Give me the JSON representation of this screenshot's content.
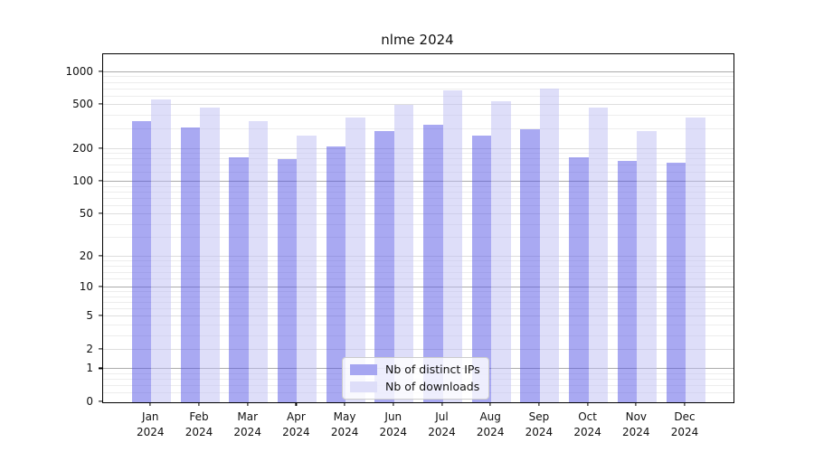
{
  "chart_data": {
    "type": "bar",
    "title": "nlme 2024",
    "x_year": "2024",
    "categories": [
      "Jan",
      "Feb",
      "Mar",
      "Apr",
      "May",
      "Jun",
      "Jul",
      "Aug",
      "Sep",
      "Oct",
      "Nov",
      "Dec"
    ],
    "series": [
      {
        "name": "Nb of distinct IPs",
        "color": "rgba(83,83,229,0.5)",
        "swatch_color": "#a6a6f1",
        "values": [
          358,
          312,
          168,
          160,
          209,
          288,
          331,
          266,
          302,
          166,
          154,
          148
        ]
      },
      {
        "name": "Nb of downloads",
        "color": "rgba(189,189,243,0.5)",
        "swatch_color": "#dedef9",
        "values": [
          560,
          477,
          355,
          264,
          388,
          500,
          678,
          540,
          704,
          476,
          291,
          389
        ]
      }
    ],
    "y_scale": "log10(value+1)",
    "y_top": 1452,
    "y_ticks": [
      0,
      1,
      2,
      5,
      10,
      20,
      50,
      100,
      200,
      500,
      1000
    ],
    "y_major_grid": [
      1,
      10,
      100,
      1000
    ],
    "y_minor_grid": [
      0.2,
      0.4,
      0.6,
      0.8,
      3,
      4,
      6,
      7,
      8,
      9,
      12,
      14,
      16,
      18,
      30,
      40,
      60,
      70,
      80,
      90,
      120,
      140,
      160,
      180,
      300,
      400,
      600,
      700,
      800,
      900
    ],
    "grid": true,
    "legend_position": "bottom-center"
  }
}
